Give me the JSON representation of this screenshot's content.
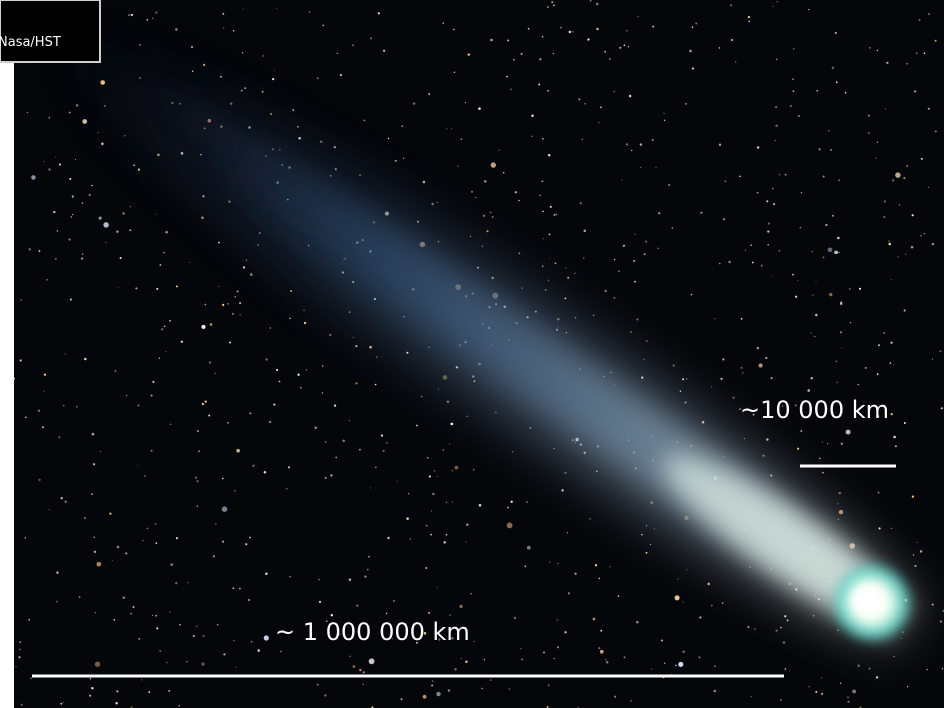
{
  "image": {
    "credit": "Nasa/HST",
    "scale_small": "~10 000 km",
    "scale_large": "~ 1 000 000 km"
  }
}
